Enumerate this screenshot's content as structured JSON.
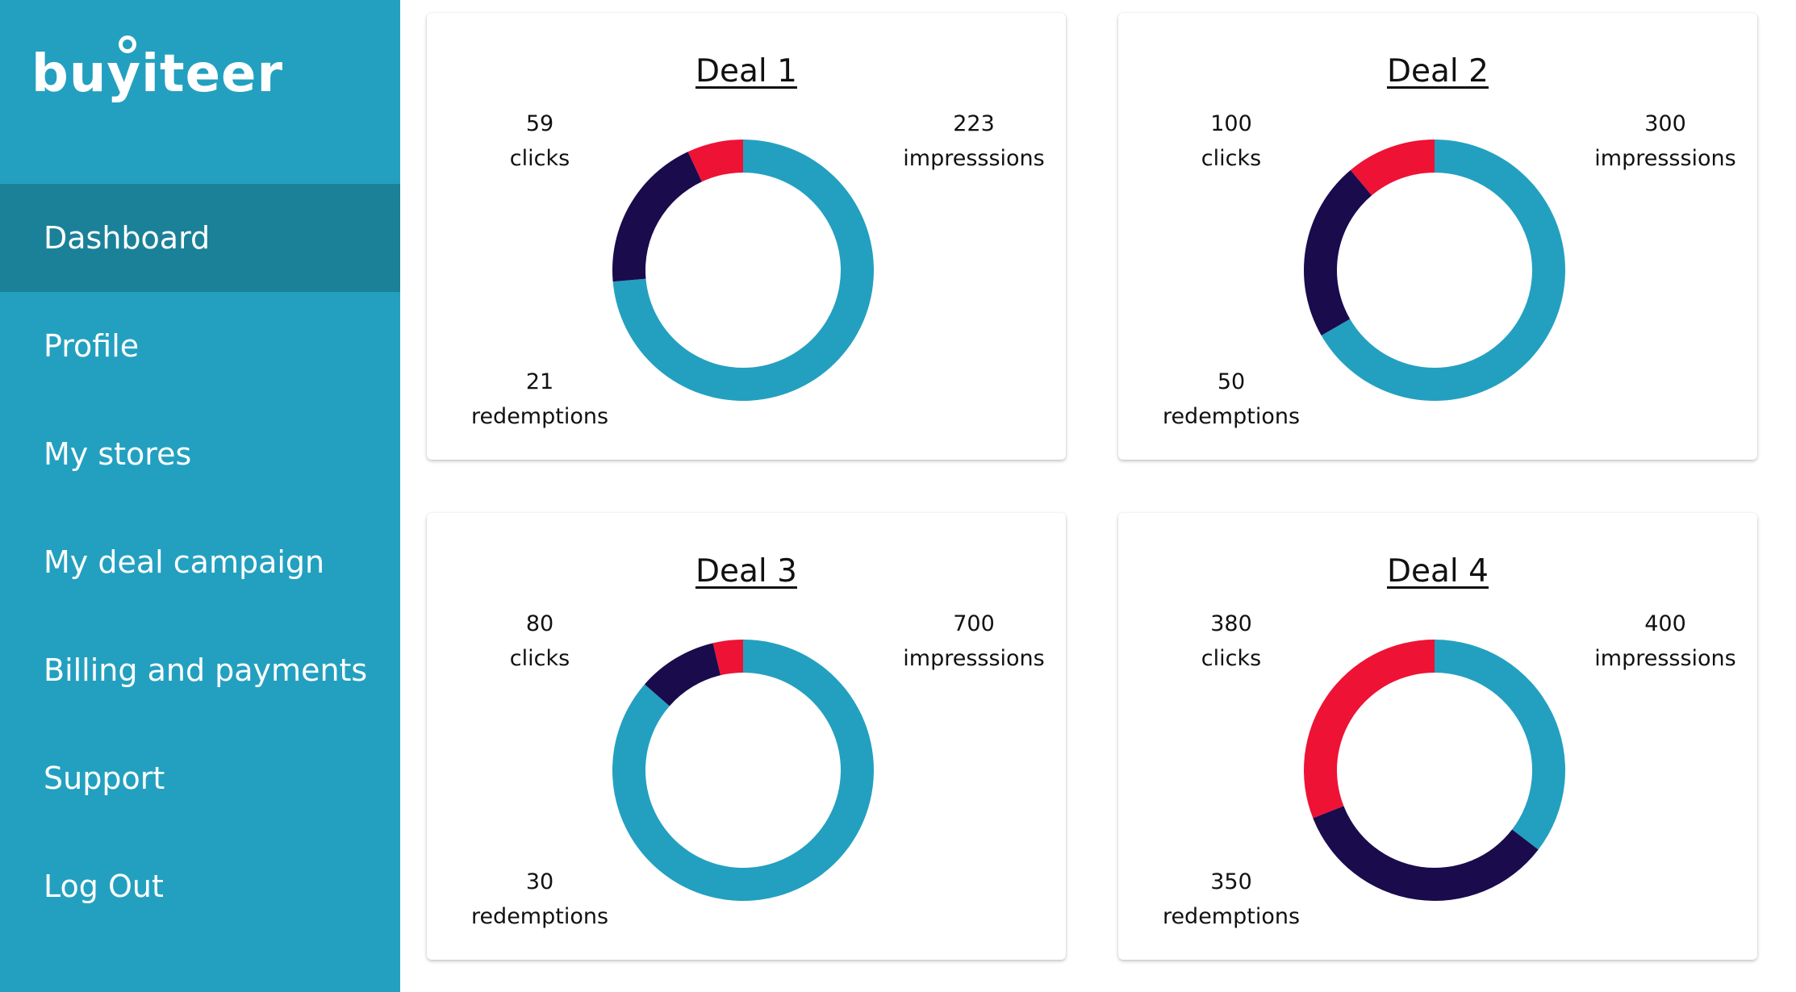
{
  "brand": {
    "name": "buyiteer"
  },
  "colors": {
    "sidebar": "#23a0c0",
    "sidebar_active": "#1b8199",
    "impressions": "#23a0c0",
    "clicks": "#1a0b4d",
    "redemptions": "#ee1235"
  },
  "sidebar": {
    "items": [
      {
        "label": "Dashboard",
        "active": true
      },
      {
        "label": "Profile",
        "active": false
      },
      {
        "label": "My stores",
        "active": false
      },
      {
        "label": "My deal campaign",
        "active": false
      },
      {
        "label": "Billing and payments",
        "active": false
      },
      {
        "label": "Support",
        "active": false
      },
      {
        "label": "Log Out",
        "active": false
      }
    ]
  },
  "deals": [
    {
      "title": "Deal 1",
      "clicks": {
        "value": "59",
        "label": "clicks"
      },
      "impressions": {
        "value": "223",
        "label": "impresssions"
      },
      "redemptions": {
        "value": "21",
        "label": "redemptions"
      }
    },
    {
      "title": "Deal 2",
      "clicks": {
        "value": "100",
        "label": "clicks"
      },
      "impressions": {
        "value": "300",
        "label": "impresssions"
      },
      "redemptions": {
        "value": "50",
        "label": "redemptions"
      }
    },
    {
      "title": "Deal 3",
      "clicks": {
        "value": "80",
        "label": "clicks"
      },
      "impressions": {
        "value": "700",
        "label": "impresssions"
      },
      "redemptions": {
        "value": "30",
        "label": "redemptions"
      }
    },
    {
      "title": "Deal 4",
      "clicks": {
        "value": "380",
        "label": "clicks"
      },
      "impressions": {
        "value": "400",
        "label": "impresssions"
      },
      "redemptions": {
        "value": "350",
        "label": "redemptions"
      }
    }
  ],
  "chart_data": [
    {
      "type": "pie",
      "title": "Deal 1",
      "categories": [
        "impressions",
        "clicks",
        "redemptions"
      ],
      "values": [
        223,
        59,
        21
      ]
    },
    {
      "type": "pie",
      "title": "Deal 2",
      "categories": [
        "impressions",
        "clicks",
        "redemptions"
      ],
      "values": [
        300,
        100,
        50
      ]
    },
    {
      "type": "pie",
      "title": "Deal 3",
      "categories": [
        "impressions",
        "clicks",
        "redemptions"
      ],
      "values": [
        700,
        80,
        30
      ]
    },
    {
      "type": "pie",
      "title": "Deal 4",
      "categories": [
        "impressions",
        "clicks",
        "redemptions"
      ],
      "values": [
        400,
        380,
        350
      ]
    }
  ]
}
